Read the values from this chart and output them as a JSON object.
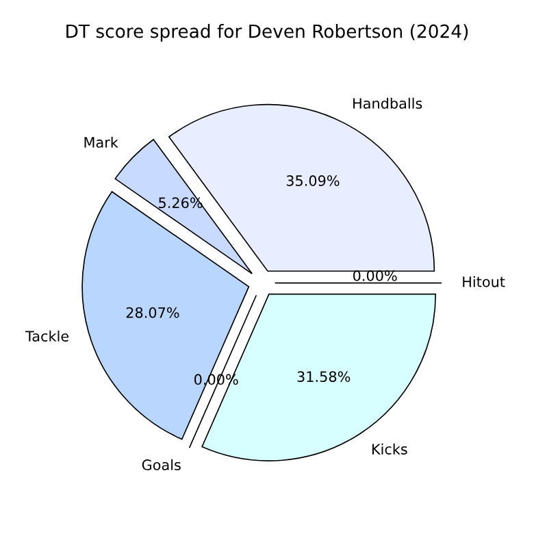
{
  "chart_data": {
    "type": "pie",
    "title": "DT score spread for Deven Robertson (2024)",
    "categories": [
      "Hitout",
      "Handballs",
      "Mark",
      "Tackle",
      "Goals",
      "Kicks"
    ],
    "values": [
      0,
      35.09,
      5.26,
      28.07,
      0,
      31.58
    ],
    "colors": [
      "#f0f0ff",
      "#e8eeff",
      "#c8daff",
      "#b8d6ff",
      "#c8f0ff",
      "#d8ffff"
    ],
    "value_labels": [
      "0.00%",
      "35.09%",
      "5.26%",
      "28.07%",
      "0.00%",
      "31.58%"
    ]
  }
}
